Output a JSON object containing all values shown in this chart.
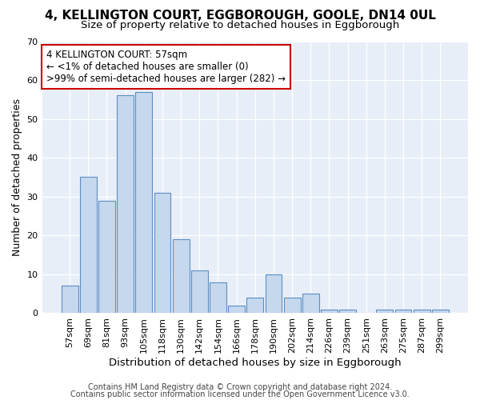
{
  "title1": "4, KELLINGTON COURT, EGGBOROUGH, GOOLE, DN14 0UL",
  "title2": "Size of property relative to detached houses in Eggborough",
  "xlabel": "Distribution of detached houses by size in Eggborough",
  "ylabel": "Number of detached properties",
  "categories": [
    "57sqm",
    "69sqm",
    "81sqm",
    "93sqm",
    "105sqm",
    "118sqm",
    "130sqm",
    "142sqm",
    "154sqm",
    "166sqm",
    "178sqm",
    "190sqm",
    "202sqm",
    "214sqm",
    "226sqm",
    "239sqm",
    "251sqm",
    "263sqm",
    "275sqm",
    "287sqm",
    "299sqm"
  ],
  "values": [
    7,
    35,
    29,
    56,
    57,
    31,
    19,
    11,
    8,
    2,
    4,
    10,
    4,
    5,
    1,
    1,
    0,
    1,
    1,
    1,
    1
  ],
  "bar_color": "#c5d8ee",
  "bar_edge_color": "#5b8ec4",
  "background_color": "#e8eef8",
  "annotation_line1": "4 KELLINGTON COURT: 57sqm",
  "annotation_line2": "← <1% of detached houses are smaller (0)",
  "annotation_line3": ">99% of semi-detached houses are larger (282) →",
  "annotation_box_color": "#ffffff",
  "annotation_box_edge_color": "#cc0000",
  "footer1": "Contains HM Land Registry data © Crown copyright and database right 2024.",
  "footer2": "Contains public sector information licensed under the Open Government Licence v3.0.",
  "ylim": [
    0,
    70
  ],
  "yticks": [
    0,
    10,
    20,
    30,
    40,
    50,
    60,
    70
  ],
  "title1_fontsize": 11,
  "title2_fontsize": 9.5,
  "xlabel_fontsize": 9.5,
  "ylabel_fontsize": 9,
  "tick_fontsize": 8,
  "annotation_fontsize": 8.5,
  "footer_fontsize": 7
}
